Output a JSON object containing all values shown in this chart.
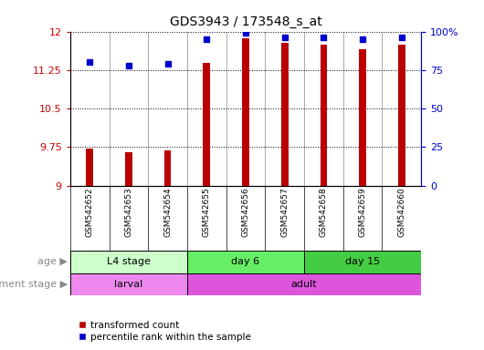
{
  "title": "GDS3943 / 173548_s_at",
  "samples": [
    "GSM542652",
    "GSM542653",
    "GSM542654",
    "GSM542655",
    "GSM542656",
    "GSM542657",
    "GSM542658",
    "GSM542659",
    "GSM542660"
  ],
  "transformed_count": [
    9.72,
    9.65,
    9.68,
    11.38,
    11.87,
    11.78,
    11.75,
    11.65,
    11.75
  ],
  "percentile_rank": [
    80,
    78,
    79,
    95,
    99,
    96,
    96,
    95,
    96
  ],
  "ylim_left": [
    9,
    12
  ],
  "ylim_right": [
    0,
    100
  ],
  "yticks_left": [
    9,
    9.75,
    10.5,
    11.25,
    12
  ],
  "yticks_right": [
    0,
    25,
    50,
    75,
    100
  ],
  "bar_color": "#bb0000",
  "dot_color": "#0000cc",
  "age_groups": [
    {
      "label": "L4 stage",
      "start": 0,
      "end": 3,
      "color": "#ccffcc"
    },
    {
      "label": "day 6",
      "start": 3,
      "end": 6,
      "color": "#66ee66"
    },
    {
      "label": "day 15",
      "start": 6,
      "end": 9,
      "color": "#44cc44"
    }
  ],
  "dev_groups": [
    {
      "label": "larval",
      "start": 0,
      "end": 3,
      "color": "#ee88ee"
    },
    {
      "label": "adult",
      "start": 3,
      "end": 9,
      "color": "#dd55dd"
    }
  ],
  "age_label": "age",
  "dev_label": "development stage",
  "legend_count_label": "transformed count",
  "legend_pct_label": "percentile rank within the sample",
  "grid_color": "#000000",
  "axis_color_left": "#cc0000",
  "axis_color_right": "#0000cc",
  "background_color": "#ffffff"
}
